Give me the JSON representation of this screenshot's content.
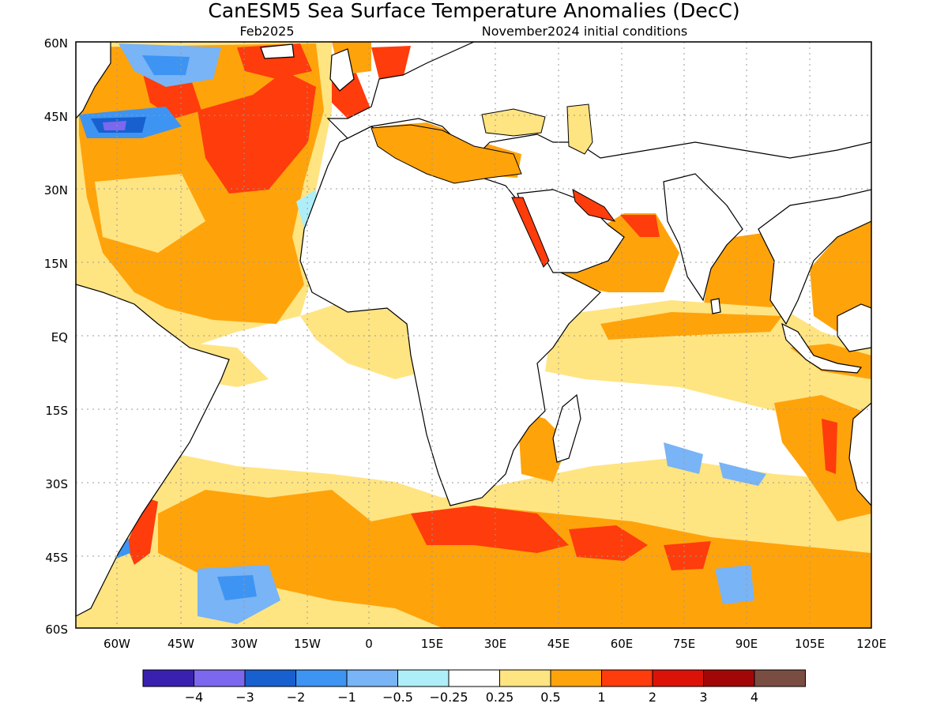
{
  "title": "CanESM5 Sea Surface Temperature Anomalies (DecC)",
  "subtitle_left": "Feb2025",
  "subtitle_right": "November2024 initial conditions",
  "lat_labels": [
    "60N",
    "45N",
    "30N",
    "15N",
    "EQ",
    "15S",
    "30S",
    "45S",
    "60S"
  ],
  "lon_labels": [
    "60W",
    "45W",
    "30W",
    "15W",
    "0",
    "15E",
    "30E",
    "45E",
    "60E",
    "75E",
    "90E",
    "105E",
    "120E"
  ],
  "colorbar": {
    "colors": [
      "#3a20b0",
      "#7b68ee",
      "#1860d0",
      "#3d94f2",
      "#78b4f6",
      "#aeeef8",
      "#ffffff",
      "#ffe482",
      "#ffa30b",
      "#fe3c0c",
      "#dc1209",
      "#a20707",
      "#7a4d43"
    ],
    "labels": [
      "−4",
      "−3",
      "−2",
      "−1",
      "−0.5",
      "−0.25",
      "0.25",
      "0.5",
      "1",
      "2",
      "3",
      "4"
    ]
  },
  "land_color": "#ffffff",
  "coast_color": "#000000"
}
